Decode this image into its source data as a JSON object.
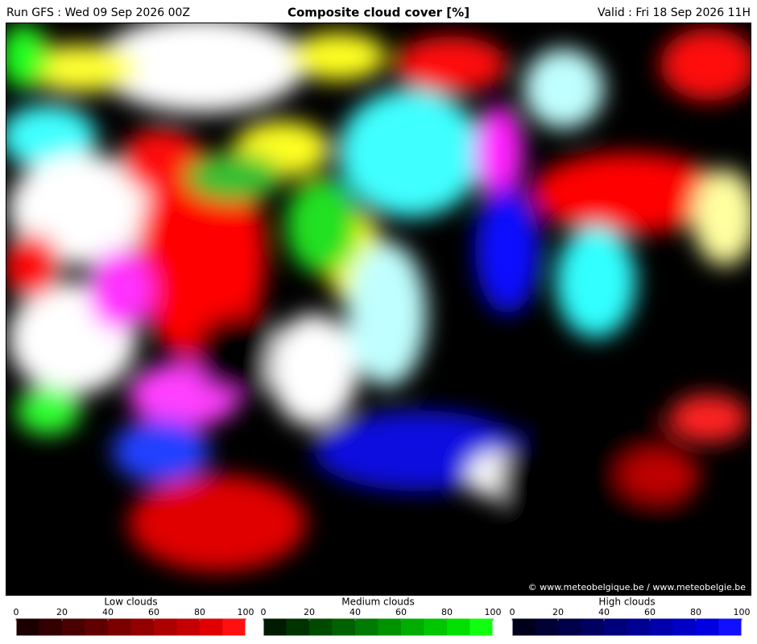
{
  "header": {
    "run": "Run GFS : Wed 09 Sep 2026 00Z",
    "title": "Composite cloud cover [%]",
    "valid": "Valid : Fri 18 Sep 2026 11H"
  },
  "copyright": "© www.meteobelgique.be / www.meteobelgie.be",
  "legends": [
    {
      "title": "Low clouds",
      "ticks": [
        0,
        20,
        40,
        60,
        80,
        100
      ],
      "colors": [
        "#1c0000",
        "#330000",
        "#4a0000",
        "#610000",
        "#7a0000",
        "#930000",
        "#ad0000",
        "#c60000",
        "#e00000",
        "#ff1010"
      ]
    },
    {
      "title": "Medium clouds",
      "ticks": [
        0,
        20,
        40,
        60,
        80,
        100
      ],
      "colors": [
        "#001c00",
        "#003300",
        "#004a00",
        "#006100",
        "#007a00",
        "#009300",
        "#00ad00",
        "#00c600",
        "#00e000",
        "#10ff10"
      ]
    },
    {
      "title": "High clouds",
      "ticks": [
        0,
        20,
        40,
        60,
        80,
        100
      ],
      "colors": [
        "#00001c",
        "#000033",
        "#00004a",
        "#000061",
        "#00007a",
        "#000093",
        "#0000ad",
        "#0000c6",
        "#0000e0",
        "#1010ff"
      ]
    }
  ]
}
